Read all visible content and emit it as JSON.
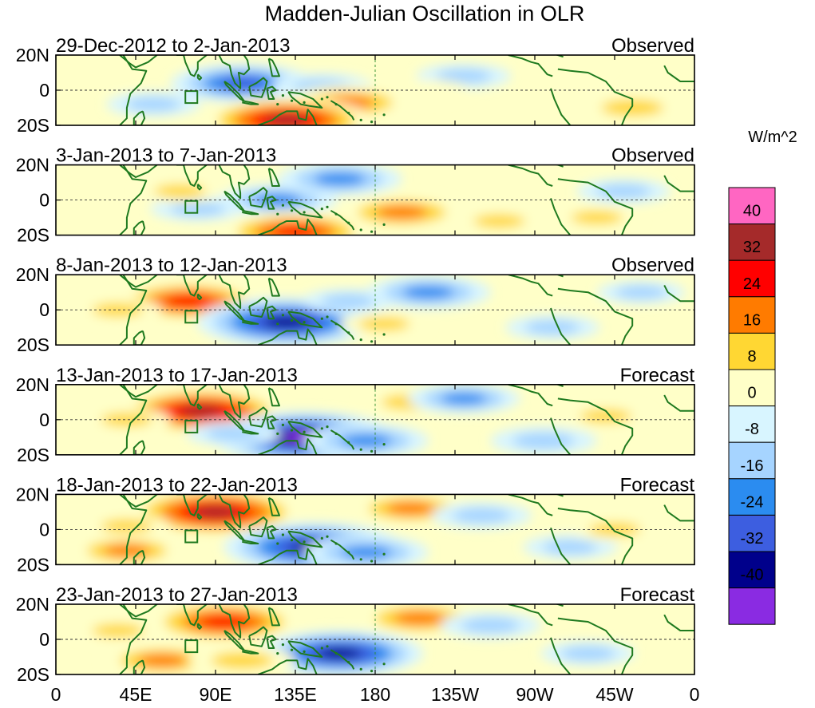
{
  "chart_data": {
    "type": "heatmap",
    "title": "Madden-Julian Oscillation in OLR",
    "units": "W/m^2",
    "lat_ticks": [
      "20N",
      "0",
      "20S"
    ],
    "lon_ticks": [
      "0",
      "45E",
      "90E",
      "135E",
      "180",
      "135W",
      "90W",
      "45W",
      "0"
    ],
    "lon_range": [
      0,
      360
    ],
    "lat_range": [
      -20,
      20
    ],
    "colorbar": {
      "levels": [
        "40",
        "32",
        "24",
        "16",
        "8",
        "0",
        "-8",
        "-16",
        "-24",
        "-32",
        "-40"
      ],
      "colors": [
        "#ff66c2",
        "#a52a2a",
        "#ff0000",
        "#ff7b00",
        "#ffd733",
        "#ffffc8",
        "#d8f5ff",
        "#a6d4ff",
        "#2b8cf0",
        "#3d5ee0",
        "#00008b",
        "#8a2be2"
      ]
    },
    "panels": [
      {
        "period": "29-Dec-2012 to 2-Jan-2013",
        "kind": "Observed"
      },
      {
        "period": "3-Jan-2013 to 7-Jan-2013",
        "kind": "Observed"
      },
      {
        "period": "8-Jan-2013 to 12-Jan-2013",
        "kind": "Observed"
      },
      {
        "period": "13-Jan-2013 to 17-Jan-2013",
        "kind": "Forecast"
      },
      {
        "period": "18-Jan-2013 to 22-Jan-2013",
        "kind": "Forecast"
      },
      {
        "period": "23-Jan-2013 to 27-Jan-2013",
        "kind": "Forecast"
      }
    ],
    "anomalies": [
      [
        {
          "lon": 105,
          "lat": 4,
          "value": -26
        },
        {
          "lon": 150,
          "lat": 2,
          "value": -12
        },
        {
          "lon": 230,
          "lat": 8,
          "value": -10
        },
        {
          "lon": 165,
          "lat": -7,
          "value": 20
        },
        {
          "lon": 130,
          "lat": -17,
          "value": 34
        },
        {
          "lon": 210,
          "lat": 0,
          "value": 6
        },
        {
          "lon": 55,
          "lat": -8,
          "value": -10
        },
        {
          "lon": 325,
          "lat": -10,
          "value": 14
        },
        {
          "lon": 290,
          "lat": 15,
          "value": 6
        }
      ],
      [
        {
          "lon": 125,
          "lat": 0,
          "value": -18
        },
        {
          "lon": 160,
          "lat": 12,
          "value": -20
        },
        {
          "lon": 80,
          "lat": -5,
          "value": -10
        },
        {
          "lon": 195,
          "lat": -7,
          "value": 20
        },
        {
          "lon": 135,
          "lat": -18,
          "value": 28
        },
        {
          "lon": 70,
          "lat": 5,
          "value": 8
        },
        {
          "lon": 250,
          "lat": -12,
          "value": 8
        },
        {
          "lon": 320,
          "lat": 5,
          "value": -10
        },
        {
          "lon": 305,
          "lat": -10,
          "value": 8
        }
      ],
      [
        {
          "lon": 75,
          "lat": 5,
          "value": 28
        },
        {
          "lon": 130,
          "lat": -7,
          "value": -38
        },
        {
          "lon": 165,
          "lat": 5,
          "value": -10
        },
        {
          "lon": 210,
          "lat": 10,
          "value": -20
        },
        {
          "lon": 185,
          "lat": -8,
          "value": 8
        },
        {
          "lon": 35,
          "lat": 0,
          "value": 8
        },
        {
          "lon": 280,
          "lat": -10,
          "value": -10
        },
        {
          "lon": 330,
          "lat": 10,
          "value": -8
        }
      ],
      [
        {
          "lon": 82,
          "lat": 5,
          "value": 34
        },
        {
          "lon": 140,
          "lat": -10,
          "value": -40
        },
        {
          "lon": 175,
          "lat": -12,
          "value": -20
        },
        {
          "lon": 200,
          "lat": 10,
          "value": 12
        },
        {
          "lon": 230,
          "lat": 12,
          "value": -16
        },
        {
          "lon": 275,
          "lat": -12,
          "value": -14
        },
        {
          "lon": 310,
          "lat": 2,
          "value": 8
        },
        {
          "lon": 40,
          "lat": 0,
          "value": 8
        },
        {
          "lon": 100,
          "lat": -8,
          "value": -10
        }
      ],
      [
        {
          "lon": 90,
          "lat": 10,
          "value": 36
        },
        {
          "lon": 145,
          "lat": -10,
          "value": -38
        },
        {
          "lon": 175,
          "lat": -13,
          "value": -20
        },
        {
          "lon": 200,
          "lat": 12,
          "value": 18
        },
        {
          "lon": 40,
          "lat": -12,
          "value": 16
        },
        {
          "lon": 240,
          "lat": 8,
          "value": -12
        },
        {
          "lon": 290,
          "lat": -10,
          "value": -10
        },
        {
          "lon": 315,
          "lat": 0,
          "value": 8
        },
        {
          "lon": 40,
          "lat": 2,
          "value": 8
        }
      ],
      [
        {
          "lon": 95,
          "lat": 10,
          "value": 30
        },
        {
          "lon": 160,
          "lat": -8,
          "value": -34
        },
        {
          "lon": 205,
          "lat": 12,
          "value": 20
        },
        {
          "lon": 60,
          "lat": -12,
          "value": 18
        },
        {
          "lon": 105,
          "lat": -12,
          "value": 14
        },
        {
          "lon": 245,
          "lat": 8,
          "value": -12
        },
        {
          "lon": 300,
          "lat": -8,
          "value": -10
        },
        {
          "lon": 35,
          "lat": 5,
          "value": 8
        }
      ]
    ]
  }
}
